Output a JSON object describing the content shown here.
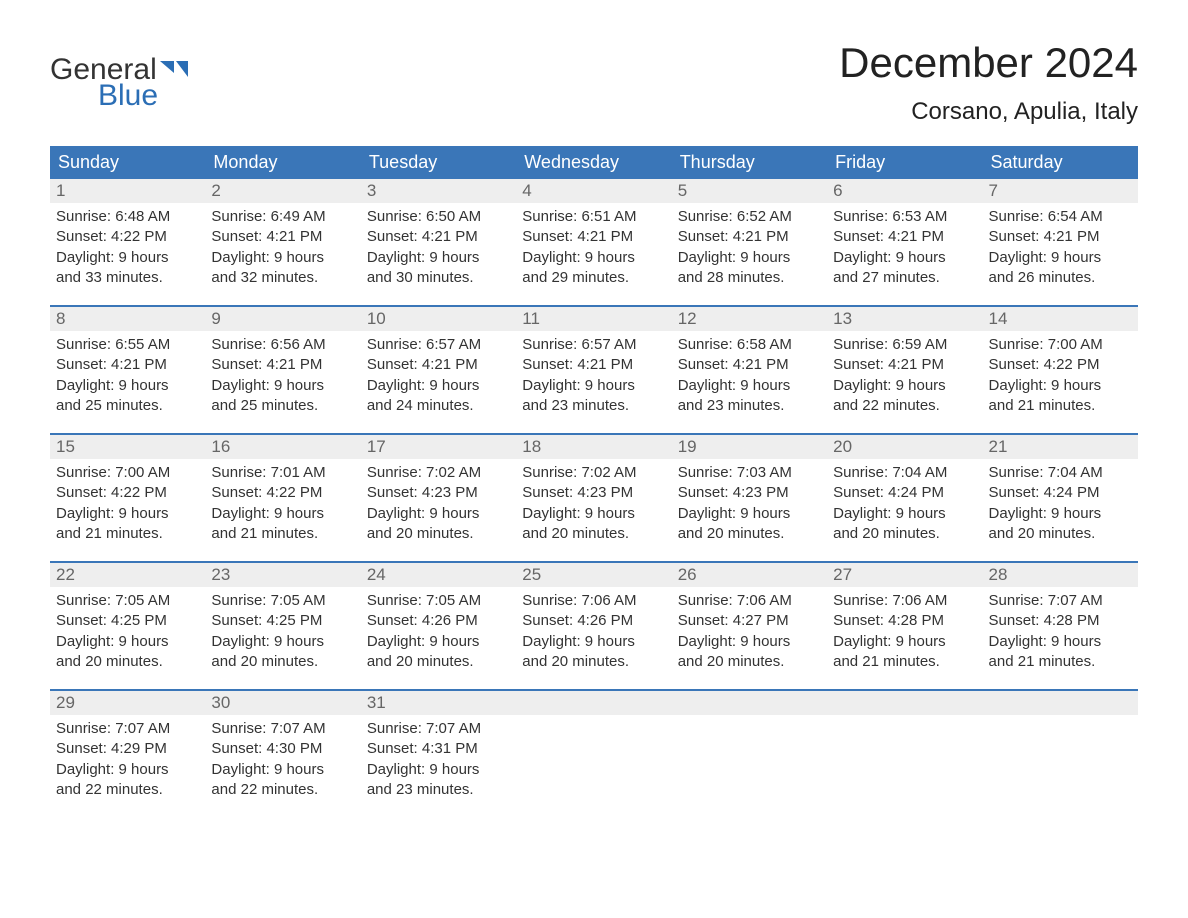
{
  "logo": {
    "text_general": "General",
    "text_blue": "Blue",
    "icon_color": "#2b6eb5"
  },
  "header": {
    "month_title": "December 2024",
    "location": "Corsano, Apulia, Italy"
  },
  "colors": {
    "header_bg": "#3a76b8",
    "header_text": "#ffffff",
    "daynum_bg": "#eeeeee",
    "daynum_text": "#666666",
    "body_text": "#333333",
    "week_divider": "#3a76b8",
    "page_bg": "#ffffff"
  },
  "day_labels": [
    "Sunday",
    "Monday",
    "Tuesday",
    "Wednesday",
    "Thursday",
    "Friday",
    "Saturday"
  ],
  "weeks": [
    [
      {
        "n": "1",
        "sunrise": "6:48 AM",
        "sunset": "4:22 PM",
        "dl1": "Daylight: 9 hours",
        "dl2": "and 33 minutes."
      },
      {
        "n": "2",
        "sunrise": "6:49 AM",
        "sunset": "4:21 PM",
        "dl1": "Daylight: 9 hours",
        "dl2": "and 32 minutes."
      },
      {
        "n": "3",
        "sunrise": "6:50 AM",
        "sunset": "4:21 PM",
        "dl1": "Daylight: 9 hours",
        "dl2": "and 30 minutes."
      },
      {
        "n": "4",
        "sunrise": "6:51 AM",
        "sunset": "4:21 PM",
        "dl1": "Daylight: 9 hours",
        "dl2": "and 29 minutes."
      },
      {
        "n": "5",
        "sunrise": "6:52 AM",
        "sunset": "4:21 PM",
        "dl1": "Daylight: 9 hours",
        "dl2": "and 28 minutes."
      },
      {
        "n": "6",
        "sunrise": "6:53 AM",
        "sunset": "4:21 PM",
        "dl1": "Daylight: 9 hours",
        "dl2": "and 27 minutes."
      },
      {
        "n": "7",
        "sunrise": "6:54 AM",
        "sunset": "4:21 PM",
        "dl1": "Daylight: 9 hours",
        "dl2": "and 26 minutes."
      }
    ],
    [
      {
        "n": "8",
        "sunrise": "6:55 AM",
        "sunset": "4:21 PM",
        "dl1": "Daylight: 9 hours",
        "dl2": "and 25 minutes."
      },
      {
        "n": "9",
        "sunrise": "6:56 AM",
        "sunset": "4:21 PM",
        "dl1": "Daylight: 9 hours",
        "dl2": "and 25 minutes."
      },
      {
        "n": "10",
        "sunrise": "6:57 AM",
        "sunset": "4:21 PM",
        "dl1": "Daylight: 9 hours",
        "dl2": "and 24 minutes."
      },
      {
        "n": "11",
        "sunrise": "6:57 AM",
        "sunset": "4:21 PM",
        "dl1": "Daylight: 9 hours",
        "dl2": "and 23 minutes."
      },
      {
        "n": "12",
        "sunrise": "6:58 AM",
        "sunset": "4:21 PM",
        "dl1": "Daylight: 9 hours",
        "dl2": "and 23 minutes."
      },
      {
        "n": "13",
        "sunrise": "6:59 AM",
        "sunset": "4:21 PM",
        "dl1": "Daylight: 9 hours",
        "dl2": "and 22 minutes."
      },
      {
        "n": "14",
        "sunrise": "7:00 AM",
        "sunset": "4:22 PM",
        "dl1": "Daylight: 9 hours",
        "dl2": "and 21 minutes."
      }
    ],
    [
      {
        "n": "15",
        "sunrise": "7:00 AM",
        "sunset": "4:22 PM",
        "dl1": "Daylight: 9 hours",
        "dl2": "and 21 minutes."
      },
      {
        "n": "16",
        "sunrise": "7:01 AM",
        "sunset": "4:22 PM",
        "dl1": "Daylight: 9 hours",
        "dl2": "and 21 minutes."
      },
      {
        "n": "17",
        "sunrise": "7:02 AM",
        "sunset": "4:23 PM",
        "dl1": "Daylight: 9 hours",
        "dl2": "and 20 minutes."
      },
      {
        "n": "18",
        "sunrise": "7:02 AM",
        "sunset": "4:23 PM",
        "dl1": "Daylight: 9 hours",
        "dl2": "and 20 minutes."
      },
      {
        "n": "19",
        "sunrise": "7:03 AM",
        "sunset": "4:23 PM",
        "dl1": "Daylight: 9 hours",
        "dl2": "and 20 minutes."
      },
      {
        "n": "20",
        "sunrise": "7:04 AM",
        "sunset": "4:24 PM",
        "dl1": "Daylight: 9 hours",
        "dl2": "and 20 minutes."
      },
      {
        "n": "21",
        "sunrise": "7:04 AM",
        "sunset": "4:24 PM",
        "dl1": "Daylight: 9 hours",
        "dl2": "and 20 minutes."
      }
    ],
    [
      {
        "n": "22",
        "sunrise": "7:05 AM",
        "sunset": "4:25 PM",
        "dl1": "Daylight: 9 hours",
        "dl2": "and 20 minutes."
      },
      {
        "n": "23",
        "sunrise": "7:05 AM",
        "sunset": "4:25 PM",
        "dl1": "Daylight: 9 hours",
        "dl2": "and 20 minutes."
      },
      {
        "n": "24",
        "sunrise": "7:05 AM",
        "sunset": "4:26 PM",
        "dl1": "Daylight: 9 hours",
        "dl2": "and 20 minutes."
      },
      {
        "n": "25",
        "sunrise": "7:06 AM",
        "sunset": "4:26 PM",
        "dl1": "Daylight: 9 hours",
        "dl2": "and 20 minutes."
      },
      {
        "n": "26",
        "sunrise": "7:06 AM",
        "sunset": "4:27 PM",
        "dl1": "Daylight: 9 hours",
        "dl2": "and 20 minutes."
      },
      {
        "n": "27",
        "sunrise": "7:06 AM",
        "sunset": "4:28 PM",
        "dl1": "Daylight: 9 hours",
        "dl2": "and 21 minutes."
      },
      {
        "n": "28",
        "sunrise": "7:07 AM",
        "sunset": "4:28 PM",
        "dl1": "Daylight: 9 hours",
        "dl2": "and 21 minutes."
      }
    ],
    [
      {
        "n": "29",
        "sunrise": "7:07 AM",
        "sunset": "4:29 PM",
        "dl1": "Daylight: 9 hours",
        "dl2": "and 22 minutes."
      },
      {
        "n": "30",
        "sunrise": "7:07 AM",
        "sunset": "4:30 PM",
        "dl1": "Daylight: 9 hours",
        "dl2": "and 22 minutes."
      },
      {
        "n": "31",
        "sunrise": "7:07 AM",
        "sunset": "4:31 PM",
        "dl1": "Daylight: 9 hours",
        "dl2": "and 23 minutes."
      },
      null,
      null,
      null,
      null
    ]
  ],
  "labels": {
    "sunrise_prefix": "Sunrise: ",
    "sunset_prefix": "Sunset: "
  }
}
